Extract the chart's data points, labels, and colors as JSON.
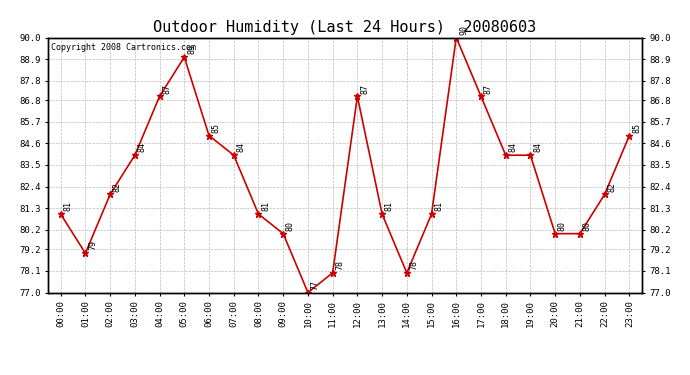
{
  "title": "Outdoor Humidity (Last 24 Hours)  20080603",
  "copyright_text": "Copyright 2008 Cartronics.com",
  "hours": [
    "00:00",
    "01:00",
    "02:00",
    "03:00",
    "04:00",
    "05:00",
    "06:00",
    "07:00",
    "08:00",
    "09:00",
    "10:00",
    "11:00",
    "12:00",
    "13:00",
    "14:00",
    "15:00",
    "16:00",
    "17:00",
    "18:00",
    "19:00",
    "20:00",
    "21:00",
    "22:00",
    "23:00"
  ],
  "values": [
    81,
    79,
    82,
    84,
    87,
    89,
    85,
    84,
    81,
    80,
    77,
    78,
    87,
    81,
    78,
    81,
    90,
    87,
    84,
    84,
    80,
    80,
    82,
    85
  ],
  "x_indices": [
    0,
    1,
    2,
    3,
    4,
    5,
    6,
    7,
    8,
    9,
    10,
    11,
    12,
    13,
    14,
    15,
    16,
    17,
    18,
    19,
    20,
    21,
    22,
    23
  ],
  "ylim": [
    77.0,
    90.0
  ],
  "yticks": [
    77.0,
    78.1,
    79.2,
    80.2,
    81.3,
    82.4,
    83.5,
    84.6,
    85.7,
    86.8,
    87.8,
    88.9,
    90.0
  ],
  "line_color": "#cc0000",
  "marker": "*",
  "marker_color": "#cc0000",
  "marker_size": 5,
  "bg_color": "#ffffff",
  "grid_color": "#bbbbbb",
  "title_fontsize": 11,
  "label_fontsize": 6.5,
  "annotation_fontsize": 6,
  "copyright_fontsize": 6
}
